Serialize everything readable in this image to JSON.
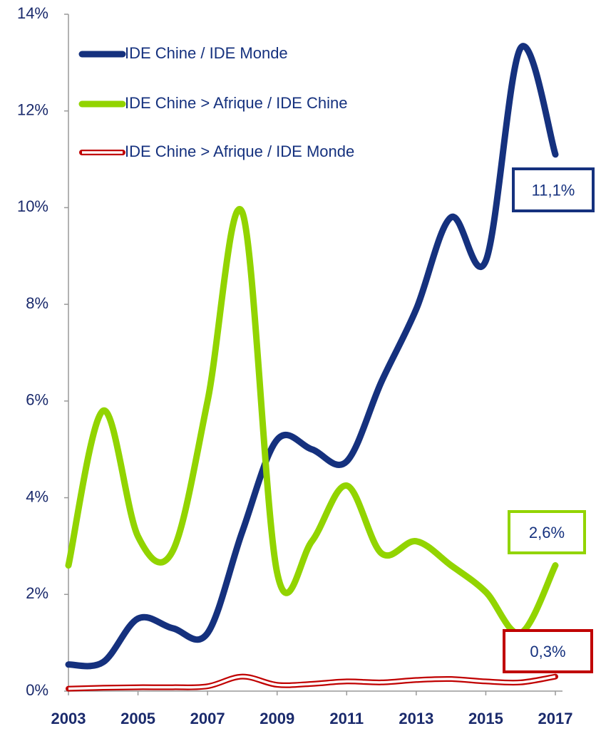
{
  "chart_data": {
    "type": "line",
    "x": [
      2003,
      2004,
      2005,
      2006,
      2007,
      2008,
      2009,
      2010,
      2011,
      2012,
      2013,
      2014,
      2015,
      2016,
      2017
    ],
    "xlim": [
      2003,
      2017
    ],
    "xticks": [
      2003,
      2005,
      2007,
      2009,
      2011,
      2013,
      2015,
      2017
    ],
    "ylim": [
      0,
      14
    ],
    "yticks": [
      {
        "value": 0,
        "label": "0%"
      },
      {
        "value": 2,
        "label": "2%"
      },
      {
        "value": 4,
        "label": "4%"
      },
      {
        "value": 6,
        "label": "6%"
      },
      {
        "value": 8,
        "label": "8%"
      },
      {
        "value": 10,
        "label": "10%"
      },
      {
        "value": 12,
        "label": "12%"
      },
      {
        "value": 14,
        "label": "14%"
      }
    ],
    "legend": "upper left",
    "series": [
      {
        "name": "IDE Chine / IDE Monde",
        "color": "#15317e",
        "values": [
          0.55,
          0.6,
          1.5,
          1.3,
          1.2,
          3.3,
          5.2,
          5.0,
          4.75,
          6.4,
          7.9,
          9.8,
          8.9,
          13.3,
          11.1
        ],
        "value_labels": [
          null,
          null,
          null,
          null,
          null,
          null,
          null,
          null,
          null,
          null,
          null,
          null,
          null,
          null,
          "11,1%"
        ]
      },
      {
        "name": "IDE Chine > Afrique / IDE Chine",
        "color": "#92d400",
        "values": [
          2.6,
          5.8,
          3.2,
          2.9,
          6.0,
          9.9,
          2.45,
          3.1,
          4.25,
          2.85,
          3.1,
          2.6,
          2.05,
          1.2,
          2.6
        ],
        "value_labels": [
          null,
          null,
          null,
          null,
          null,
          null,
          null,
          null,
          null,
          null,
          null,
          null,
          null,
          null,
          "2,6%"
        ]
      },
      {
        "name": "IDE Chine > Afrique / IDE Monde",
        "color": "#c00000",
        "values": [
          0.05,
          0.07,
          0.08,
          0.08,
          0.1,
          0.3,
          0.13,
          0.15,
          0.2,
          0.18,
          0.23,
          0.25,
          0.2,
          0.18,
          0.3
        ],
        "value_labels": [
          null,
          null,
          null,
          null,
          null,
          null,
          null,
          null,
          null,
          null,
          null,
          null,
          null,
          null,
          "0,3%"
        ]
      }
    ]
  }
}
